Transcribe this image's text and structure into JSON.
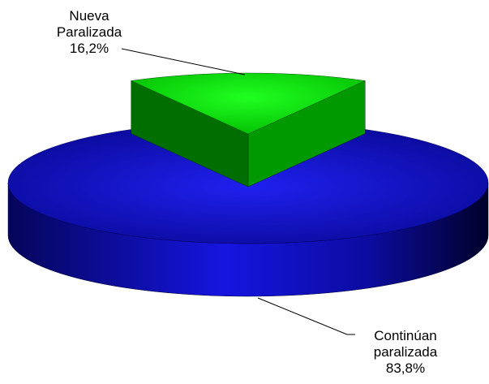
{
  "chart_data": {
    "type": "pie3d",
    "categories": [
      "Nueva Paralizada",
      "Continúan paralizada"
    ],
    "values": [
      16.2,
      83.8
    ],
    "value_labels": [
      "16,2%",
      "83,8%"
    ],
    "colors": [
      "#00d800",
      "#0000d0"
    ]
  }
}
